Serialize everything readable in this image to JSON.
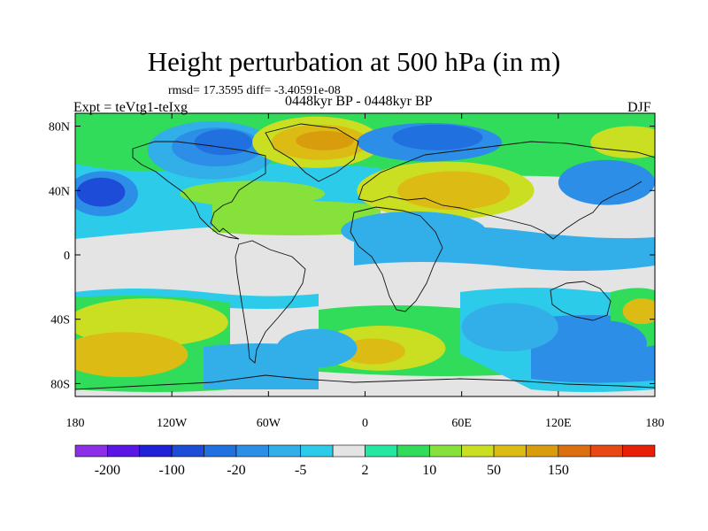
{
  "title": "Height perturbation at 500 hPa (in m)",
  "subtitle_stats": "rmsd= 17.3595 diff= -3.40591e-08",
  "subtitle_left": "Expt = teVtg1-teIxg",
  "subtitle_center": "0448kyr BP - 0448kyr BP",
  "subtitle_right": "DJF",
  "lat_ticks": [
    {
      "value": 80,
      "label": "80N"
    },
    {
      "value": 40,
      "label": "40N"
    },
    {
      "value": 0,
      "label": "0"
    },
    {
      "value": -40,
      "label": "40S"
    },
    {
      "value": -80,
      "label": "80S"
    }
  ],
  "lon_ticks": [
    {
      "value": -180,
      "label": "180"
    },
    {
      "value": -120,
      "label": "120W"
    },
    {
      "value": -60,
      "label": "60W"
    },
    {
      "value": 0,
      "label": "0"
    },
    {
      "value": 60,
      "label": "60E"
    },
    {
      "value": 120,
      "label": "120E"
    },
    {
      "value": 180,
      "label": "180"
    }
  ],
  "colorbar": {
    "colors": [
      "#8c2fe6",
      "#5a16e6",
      "#2020d8",
      "#1c4cd8",
      "#2170e0",
      "#2d8ee8",
      "#32aee8",
      "#2ccbea",
      "#e4e4e4",
      "#22e8a2",
      "#30dc5a",
      "#86e23a",
      "#cade22",
      "#dcbc14",
      "#d89c0c",
      "#dc7010",
      "#e84814",
      "#e82008"
    ],
    "labels": [
      {
        "text": "-200",
        "boundary": 1
      },
      {
        "text": "-100",
        "boundary": 3
      },
      {
        "text": "-20",
        "boundary": 5
      },
      {
        "text": "-5",
        "boundary": 7
      },
      {
        "text": "2",
        "boundary": 9
      },
      {
        "text": "10",
        "boundary": 11
      },
      {
        "text": "50",
        "boundary": 13
      },
      {
        "text": "150",
        "boundary": 15
      }
    ]
  },
  "field": {
    "background_color": "#e4e4e4",
    "blobs": [
      {
        "lon": -163,
        "lat": 38,
        "rx": 22,
        "ry": 14,
        "color": "#2d8ee8"
      },
      {
        "lon": -164,
        "lat": 39,
        "rx": 15,
        "ry": 9,
        "color": "#1c4cd8"
      },
      {
        "lon": -95,
        "lat": 65,
        "rx": 40,
        "ry": 18,
        "color": "#32aee8"
      },
      {
        "lon": -92,
        "lat": 67,
        "rx": 28,
        "ry": 12,
        "color": "#2d8ee8"
      },
      {
        "lon": -88,
        "lat": 70,
        "rx": 18,
        "ry": 8,
        "color": "#2170e0"
      },
      {
        "lon": -30,
        "lat": 70,
        "rx": 40,
        "ry": 16,
        "color": "#cade22"
      },
      {
        "lon": -28,
        "lat": 70,
        "rx": 30,
        "ry": 11,
        "color": "#dcbc14"
      },
      {
        "lon": -25,
        "lat": 71,
        "rx": 18,
        "ry": 6,
        "color": "#d89c0c"
      },
      {
        "lon": -70,
        "lat": 38,
        "rx": 45,
        "ry": 8,
        "color": "#86e23a"
      },
      {
        "lon": 40,
        "lat": 70,
        "rx": 45,
        "ry": 12,
        "color": "#2d8ee8"
      },
      {
        "lon": 45,
        "lat": 73,
        "rx": 28,
        "ry": 8,
        "color": "#2170e0"
      },
      {
        "lon": 50,
        "lat": 40,
        "rx": 55,
        "ry": 18,
        "color": "#cade22"
      },
      {
        "lon": 55,
        "lat": 40,
        "rx": 35,
        "ry": 12,
        "color": "#dcbc14"
      },
      {
        "lon": 150,
        "lat": 45,
        "rx": 30,
        "ry": 14,
        "color": "#2d8ee8"
      },
      {
        "lon": 165,
        "lat": 70,
        "rx": 25,
        "ry": 10,
        "color": "#cade22"
      },
      {
        "lon": 30,
        "lat": 15,
        "rx": 45,
        "ry": 12,
        "color": "#32aee8"
      },
      {
        "lon": -135,
        "lat": -42,
        "rx": 50,
        "ry": 15,
        "color": "#cade22"
      },
      {
        "lon": -150,
        "lat": -62,
        "rx": 40,
        "ry": 14,
        "color": "#dcbc14"
      },
      {
        "lon": 10,
        "lat": -58,
        "rx": 40,
        "ry": 14,
        "color": "#cade22"
      },
      {
        "lon": 5,
        "lat": -60,
        "rx": 20,
        "ry": 8,
        "color": "#dcbc14"
      },
      {
        "lon": -30,
        "lat": -58,
        "rx": 25,
        "ry": 12,
        "color": "#32aee8"
      },
      {
        "lon": 90,
        "lat": -45,
        "rx": 30,
        "ry": 15,
        "color": "#32aee8"
      },
      {
        "lon": 150,
        "lat": -55,
        "rx": 25,
        "ry": 14,
        "color": "#2d8ee8"
      },
      {
        "lon": 172,
        "lat": -35,
        "rx": 12,
        "ry": 8,
        "color": "#dcbc14"
      }
    ]
  }
}
